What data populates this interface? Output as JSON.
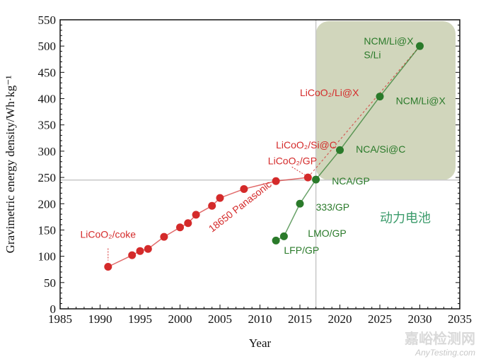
{
  "chart_data": {
    "type": "scatter",
    "xlabel": "Year",
    "ylabel": "Gravimetric energy density/Wh·kg⁻¹",
    "xlim": [
      1985,
      2035
    ],
    "ylim": [
      0,
      550
    ],
    "xticks": [
      1985,
      1990,
      1995,
      2000,
      2005,
      2010,
      2015,
      2020,
      2025,
      2030,
      2035
    ],
    "yticks": [
      0,
      50,
      100,
      150,
      200,
      250,
      300,
      350,
      400,
      450,
      500,
      550
    ],
    "grid": false,
    "reference_lines": {
      "x": 2017,
      "y": 245
    },
    "shaded_region": {
      "x": [
        2017,
        2035
      ],
      "y": [
        245,
        550
      ],
      "color": "#c9cfb0"
    },
    "series": [
      {
        "color": "#d42a2a",
        "x": [
          1991,
          1994,
          1995,
          1996,
          1998,
          2000,
          2001,
          2002,
          2004,
          2005,
          2008,
          2012,
          2016
        ],
        "y": [
          80,
          102,
          110,
          114,
          137,
          155,
          163,
          179,
          196,
          211,
          228,
          243,
          250
        ],
        "projection": {
          "x": [
            2016,
            2030
          ],
          "y": [
            250,
            500
          ],
          "style": "dashed"
        }
      },
      {
        "color": "#2a7a2a",
        "x": [
          2012,
          2013,
          2015,
          2017,
          2020,
          2025,
          2030
        ],
        "y": [
          130,
          138,
          200,
          246,
          302,
          404,
          500
        ]
      }
    ],
    "annotations": [
      {
        "text": "LiCoO₂/coke",
        "color": "#d42a2a",
        "x": 1991,
        "y": 135
      },
      {
        "text": "18650 Panasonic",
        "color": "#d42a2a",
        "x": 2004,
        "y": 145
      },
      {
        "text": "LiCoO₂/GP",
        "color": "#d42a2a",
        "x": 2011,
        "y": 275
      },
      {
        "text": "LiCoO₂/Si@C",
        "color": "#d42a2a",
        "x": 2012,
        "y": 305
      },
      {
        "text": "LiCoO₂/Li@X",
        "color": "#d42a2a",
        "x": 2015,
        "y": 405
      },
      {
        "text": "LFP/GP",
        "color": "#2a7a2a",
        "x": 2013,
        "y": 105
      },
      {
        "text": "LMO/GP",
        "color": "#2a7a2a",
        "x": 2016,
        "y": 137
      },
      {
        "text": "333/GP",
        "color": "#2a7a2a",
        "x": 2017,
        "y": 187
      },
      {
        "text": "NCA/GP",
        "color": "#2a7a2a",
        "x": 2019,
        "y": 237
      },
      {
        "text": "NCA/Si@C",
        "color": "#2a7a2a",
        "x": 2022,
        "y": 297
      },
      {
        "text": "NCM/Li@X",
        "color": "#2a7a2a",
        "x": 2027,
        "y": 389
      },
      {
        "text": "NCM/Li@X",
        "color": "#2a7a2a",
        "x": 2023,
        "y": 503
      },
      {
        "text": "S/Li",
        "color": "#2a7a2a",
        "x": 2023,
        "y": 477
      },
      {
        "text": "动力电池",
        "color": "#3a9a6a",
        "x": 2025,
        "y": 165
      }
    ]
  },
  "watermark": {
    "cn": "嘉峪检测网",
    "en": "AnyTesting.com"
  }
}
